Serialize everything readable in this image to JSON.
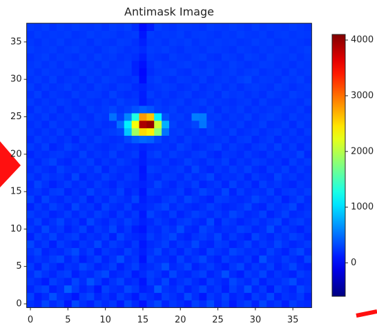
{
  "chart_data": {
    "type": "heatmap",
    "title": "Antimask Image",
    "colormap": "jet",
    "xlim": [
      -0.5,
      37.5
    ],
    "ylim": [
      -0.5,
      37.5
    ],
    "xticks": [
      0,
      5,
      10,
      15,
      20,
      25,
      30,
      35
    ],
    "yticks": [
      0,
      5,
      10,
      15,
      20,
      25,
      30,
      35
    ],
    "clim": [
      -600,
      4100
    ],
    "colorbar_ticks": [
      0,
      1000,
      2000,
      3000,
      4000
    ],
    "z": [
      [
        210,
        150,
        300,
        180,
        250,
        90,
        320,
        200,
        140,
        260,
        180,
        230,
        110,
        290,
        170,
        60,
        220,
        310,
        150,
        240,
        190,
        120,
        280,
        200,
        330,
        160,
        250,
        100,
        210,
        270,
        140,
        300,
        180,
        230,
        120,
        260,
        200,
        170
      ],
      [
        280,
        120,
        190,
        350,
        210,
        170,
        90,
        240,
        300,
        160,
        220,
        140,
        260,
        180,
        100,
        250,
        190,
        130,
        270,
        210,
        150,
        320,
        200,
        90,
        240,
        180,
        290,
        150,
        200,
        120,
        260,
        190,
        310,
        140,
        220,
        180,
        250,
        130
      ],
      [
        160,
        250,
        300,
        130,
        190,
        420,
        260,
        150,
        210,
        90,
        280,
        200,
        170,
        310,
        240,
        120,
        160,
        390,
        220,
        180,
        260,
        140,
        210,
        300,
        170,
        230,
        120,
        270,
        190,
        350,
        160,
        240,
        110,
        280,
        200,
        150,
        300,
        220
      ],
      [
        230,
        180,
        110,
        270,
        210,
        150,
        300,
        190,
        360,
        240,
        130,
        220,
        290,
        160,
        200,
        80,
        250,
        170,
        300,
        140,
        210,
        270,
        180,
        120,
        260,
        200,
        150,
        310,
        230,
        170,
        280,
        130,
        220,
        190,
        250,
        330,
        170,
        200
      ],
      [
        190,
        300,
        220,
        160,
        240,
        280,
        130,
        210,
        170,
        260,
        320,
        150,
        190,
        240,
        110,
        180,
        270,
        220,
        140,
        300,
        190,
        160,
        230,
        280,
        150,
        210,
        340,
        180,
        120,
        250,
        200,
        290,
        160,
        230,
        180,
        140,
        260,
        210
      ],
      [
        250,
        140,
        280,
        200,
        130,
        220,
        190,
        310,
        240,
        150,
        200,
        270,
        130,
        210,
        280,
        150,
        190,
        240,
        350,
        170,
        220,
        290,
        140,
        200,
        260,
        180,
        130,
        230,
        300,
        160,
        240,
        190,
        270,
        150,
        210,
        300,
        180,
        140
      ],
      [
        170,
        230,
        190,
        260,
        310,
        160,
        240,
        120,
        200,
        280,
        150,
        220,
        340,
        180,
        230,
        70,
        260,
        190,
        210,
        140,
        280,
        170,
        230,
        310,
        190,
        140,
        260,
        200,
        170,
        240,
        130,
        350,
        210,
        180,
        260,
        200,
        150,
        290
      ],
      [
        220,
        290,
        150,
        200,
        170,
        250,
        330,
        180,
        260,
        130,
        240,
        190,
        160,
        280,
        200,
        120,
        210,
        300,
        170,
        230,
        150,
        260,
        190,
        140,
        280,
        220,
        170,
        300,
        250,
        190,
        220,
        160,
        280,
        200,
        140,
        240,
        310,
        170
      ],
      [
        300,
        180,
        240,
        130,
        260,
        200,
        150,
        230,
        190,
        310,
        170,
        260,
        210,
        150,
        240,
        90,
        180,
        220,
        280,
        160,
        240,
        200,
        310,
        180,
        150,
        260,
        230,
        140,
        200,
        280,
        170,
        240,
        190,
        300,
        220,
        160,
        200,
        250
      ],
      [
        140,
        260,
        200,
        290,
        180,
        230,
        270,
        160,
        220,
        180,
        250,
        130,
        290,
        200,
        170,
        140,
        260,
        190,
        240,
        310,
        180,
        140,
        220,
        260,
        200,
        300,
        160,
        250,
        180,
        130,
        290,
        210,
        160,
        240,
        190,
        280,
        230,
        160
      ],
      [
        230,
        170,
        310,
        190,
        240,
        140,
        200,
        280,
        150,
        240,
        190,
        300,
        160,
        230,
        120,
        80,
        210,
        170,
        260,
        200,
        330,
        180,
        150,
        290,
        230,
        170,
        210,
        190,
        280,
        240,
        160,
        200,
        330,
        170,
        250,
        190,
        140,
        220
      ],
      [
        190,
        280,
        160,
        220,
        300,
        180,
        230,
        140,
        300,
        200,
        160,
        240,
        190,
        280,
        210,
        130,
        170,
        250,
        200,
        150,
        230,
        270,
        200,
        160,
        310,
        140,
        260,
        220,
        150,
        200,
        250,
        180,
        240,
        290,
        160,
        230,
        270,
        190
      ],
      [
        260,
        200,
        230,
        150,
        190,
        260,
        170,
        240,
        180,
        270,
        220,
        150,
        250,
        170,
        240,
        100,
        290,
        210,
        170,
        260,
        150,
        210,
        280,
        230,
        180,
        250,
        190,
        300,
        240,
        170,
        200,
        280,
        150,
        210,
        280,
        170,
        200,
        240
      ],
      [
        150,
        240,
        180,
        280,
        220,
        160,
        300,
        200,
        230,
        150,
        280,
        200,
        170,
        260,
        150,
        160,
        200,
        250,
        300,
        180,
        240,
        190,
        160,
        200,
        270,
        210,
        160,
        180,
        220,
        290,
        180,
        150,
        260,
        200,
        230,
        300,
        160,
        210
      ],
      [
        280,
        160,
        290,
        200,
        170,
        240,
        190,
        260,
        140,
        230,
        170,
        260,
        220,
        180,
        290,
        120,
        180,
        160,
        230,
        270,
        190,
        300,
        230,
        180,
        140,
        260,
        240,
        200,
        170,
        210,
        300,
        230,
        190,
        250,
        140,
        210,
        280,
        180
      ],
      [
        200,
        230,
        170,
        250,
        270,
        150,
        220,
        180,
        290,
        200,
        240,
        190,
        280,
        150,
        210,
        90,
        250,
        220,
        180,
        200,
        260,
        150,
        210,
        290,
        230,
        180,
        300,
        150,
        260,
        180,
        220,
        190,
        280,
        160,
        230,
        250,
        200,
        260
      ],
      [
        170,
        290,
        220,
        140,
        200,
        260,
        180,
        230,
        170,
        250,
        200,
        150,
        230,
        200,
        170,
        140,
        190,
        290,
        210,
        160,
        230,
        200,
        270,
        150,
        200,
        240,
        160,
        280,
        190,
        230,
        150,
        270,
        200,
        240,
        190,
        160,
        230,
        200
      ],
      [
        240,
        180,
        260,
        210,
        230,
        170,
        300,
        160,
        220,
        190,
        270,
        210,
        170,
        240,
        220,
        100,
        210,
        170,
        250,
        230,
        180,
        260,
        190,
        230,
        300,
        170,
        220,
        200,
        240,
        160,
        250,
        200,
        170,
        290,
        210,
        240,
        180,
        220
      ],
      [
        190,
        250,
        200,
        170,
        280,
        220,
        190,
        250,
        200,
        280,
        160,
        240,
        200,
        180,
        210,
        80,
        260,
        230,
        190,
        220,
        250,
        170,
        300,
        200,
        160,
        230,
        190,
        260,
        210,
        280,
        190,
        160,
        250,
        200,
        270,
        180,
        240,
        190
      ],
      [
        230,
        170,
        240,
        290,
        190,
        160,
        240,
        210,
        270,
        170,
        230,
        190,
        260,
        220,
        170,
        120,
        200,
        190,
        240,
        170,
        200,
        280,
        220,
        180,
        250,
        210,
        270,
        170,
        230,
        190,
        260,
        230,
        180,
        220,
        160,
        260,
        200,
        250
      ],
      [
        160,
        220,
        190,
        230,
        250,
        210,
        170,
        280,
        190,
        230,
        200,
        270,
        180,
        210,
        250,
        110,
        230,
        280,
        200,
        260,
        220,
        190,
        240,
        270,
        200,
        160,
        230,
        220,
        180,
        250,
        200,
        170,
        240,
        190,
        230,
        210,
        290,
        170
      ],
      [
        250,
        200,
        270,
        160,
        200,
        280,
        230,
        190,
        240,
        200,
        180,
        220,
        250,
        190,
        210,
        150,
        190,
        210,
        230,
        190,
        280,
        230,
        170,
        200,
        240,
        280,
        190,
        250,
        210,
        170,
        230,
        260,
        200,
        280,
        190,
        250,
        170,
        230
      ],
      [
        180,
        260,
        210,
        240,
        190,
        230,
        160,
        250,
        200,
        260,
        220,
        190,
        210,
        300,
        400,
        460,
        420,
        290,
        210,
        240,
        190,
        260,
        210,
        230,
        190,
        220,
        250,
        180,
        240,
        260,
        170,
        220,
        250,
        170,
        240,
        200,
        230,
        200
      ],
      [
        230,
        190,
        240,
        200,
        260,
        180,
        250,
        200,
        230,
        180,
        240,
        260,
        300,
        900,
        1900,
        2500,
        2400,
        1800,
        520,
        230,
        260,
        200,
        240,
        190,
        260,
        230,
        200,
        270,
        190,
        220,
        250,
        190,
        230,
        260,
        200,
        240,
        180,
        250
      ],
      [
        200,
        240,
        180,
        260,
        210,
        230,
        190,
        270,
        210,
        240,
        200,
        220,
        500,
        1100,
        2300,
        3900,
        4000,
        2100,
        800,
        280,
        220,
        240,
        300,
        520,
        280,
        200,
        240,
        210,
        260,
        190,
        220,
        270,
        190,
        210,
        250,
        180,
        260,
        210
      ],
      [
        240,
        210,
        260,
        190,
        230,
        200,
        260,
        220,
        190,
        260,
        230,
        500,
        280,
        600,
        1300,
        2800,
        2600,
        1100,
        350,
        240,
        260,
        210,
        560,
        540,
        230,
        250,
        200,
        240,
        220,
        270,
        200,
        240,
        270,
        230,
        190,
        260,
        220,
        240
      ],
      [
        190,
        260,
        220,
        250,
        180,
        240,
        210,
        190,
        260,
        220,
        250,
        300,
        230,
        280,
        350,
        420,
        360,
        260,
        230,
        270,
        210,
        240,
        230,
        200,
        260,
        190,
        250,
        220,
        260,
        200,
        240,
        210,
        230,
        260,
        220,
        210,
        250,
        190
      ],
      [
        250,
        200,
        240,
        210,
        260,
        230,
        190,
        250,
        220,
        200,
        240,
        210,
        280,
        230,
        240,
        110,
        200,
        250,
        210,
        230,
        260,
        200,
        240,
        270,
        210,
        240,
        220,
        200,
        230,
        250,
        190,
        260,
        210,
        200,
        250,
        230,
        200,
        260
      ],
      [
        210,
        270,
        190,
        240,
        220,
        200,
        260,
        220,
        250,
        240,
        200,
        280,
        220,
        190,
        220,
        120,
        260,
        210,
        240,
        200,
        230,
        260,
        200,
        220,
        250,
        200,
        270,
        230,
        250,
        210,
        240,
        200,
        260,
        230,
        210,
        270,
        240,
        220
      ],
      [
        260,
        200,
        250,
        210,
        230,
        270,
        210,
        240,
        200,
        260,
        230,
        200,
        250,
        240,
        180,
        150,
        210,
        230,
        260,
        240,
        200,
        220,
        260,
        200,
        230,
        260,
        210,
        250,
        200,
        240,
        260,
        230,
        210,
        270,
        240,
        200,
        230,
        250
      ],
      [
        220,
        250,
        210,
        270,
        200,
        230,
        250,
        200,
        260,
        220,
        270,
        240,
        210,
        200,
        230,
        40,
        230,
        270,
        220,
        200,
        250,
        240,
        210,
        260,
        200,
        230,
        250,
        220,
        270,
        300,
        220,
        250,
        240,
        210,
        260,
        230,
        270,
        210
      ],
      [
        250,
        210,
        260,
        230,
        240,
        200,
        220,
        270,
        230,
        250,
        210,
        230,
        260,
        240,
        150,
        20,
        190,
        230,
        250,
        270,
        220,
        200,
        260,
        240,
        270,
        210,
        240,
        260,
        220,
        250,
        270,
        210,
        230,
        250,
        200,
        260,
        220,
        240
      ],
      [
        230,
        260,
        220,
        250,
        210,
        260,
        240,
        220,
        250,
        210,
        260,
        220,
        230,
        250,
        140,
        60,
        210,
        260,
        230,
        220,
        250,
        270,
        230,
        210,
        250,
        240,
        220,
        270,
        240,
        210,
        230,
        260,
        250,
        220,
        240,
        210,
        250,
        230
      ],
      [
        210,
        240,
        270,
        220,
        250,
        230,
        210,
        260,
        220,
        270,
        230,
        250,
        210,
        230,
        200,
        120,
        240,
        220,
        200,
        260,
        230,
        220,
        250,
        270,
        220,
        200,
        260,
        240,
        210,
        270,
        250,
        220,
        270,
        240,
        230,
        260,
        220,
        250
      ],
      [
        260,
        230,
        240,
        260,
        220,
        250,
        270,
        230,
        240,
        210,
        250,
        270,
        240,
        210,
        230,
        180,
        260,
        240,
        270,
        230,
        210,
        250,
        240,
        220,
        260,
        250,
        230,
        210,
        260,
        240,
        220,
        250,
        230,
        260,
        250,
        220,
        240,
        270
      ],
      [
        240,
        210,
        250,
        230,
        270,
        220,
        240,
        250,
        210,
        260,
        230,
        220,
        260,
        250,
        210,
        130,
        230,
        250,
        220,
        260,
        240,
        270,
        220,
        250,
        230,
        260,
        240,
        250,
        220,
        230,
        270,
        240,
        260,
        220,
        240,
        250,
        230,
        210
      ],
      [
        220,
        260,
        230,
        250,
        240,
        260,
        220,
        230,
        270,
        240,
        260,
        250,
        220,
        240,
        260,
        90,
        260,
        230,
        250,
        240,
        270,
        220,
        250,
        260,
        240,
        220,
        250,
        230,
        270,
        240,
        230,
        260,
        220,
        250,
        260,
        230,
        250,
        240
      ],
      [
        250,
        230,
        260,
        220,
        250,
        230,
        260,
        240,
        230,
        250,
        220,
        260,
        240,
        270,
        200,
        40,
        120,
        260,
        230,
        220,
        250,
        240,
        230,
        220,
        260,
        240,
        230,
        260,
        240,
        220,
        260,
        230,
        250,
        240,
        230,
        260,
        240,
        220
      ]
    ]
  }
}
